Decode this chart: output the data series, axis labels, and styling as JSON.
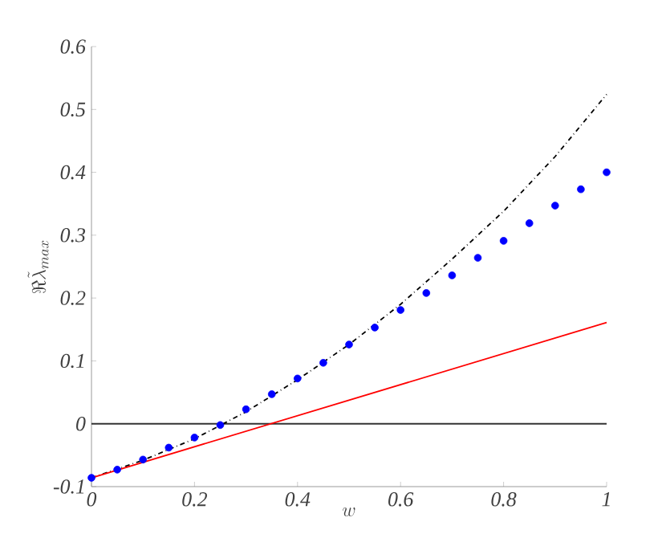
{
  "chart_data": {
    "type": "scatter",
    "xlabel": "w",
    "ylabel": "\\Re\\tilde{\\lambda}_{max}",
    "xlim": [
      0,
      1
    ],
    "ylim": [
      -0.1,
      0.6
    ],
    "xticks": [
      0,
      0.2,
      0.4,
      0.6,
      0.8,
      1
    ],
    "yticks": [
      -0.1,
      0,
      0.1,
      0.2,
      0.3,
      0.4,
      0.5,
      0.6
    ],
    "grid": false,
    "ref_lines": [
      {
        "axis": "y",
        "value": 0,
        "color": "#333333"
      }
    ],
    "series": [
      {
        "color": "#0000ff",
        "marker": "circle",
        "x": [
          0,
          0.05,
          0.1,
          0.15,
          0.2,
          0.25,
          0.3,
          0.35,
          0.4,
          0.45,
          0.5,
          0.55,
          0.6,
          0.65,
          0.7,
          0.75,
          0.8,
          0.85,
          0.9,
          0.95,
          1
        ],
        "values": [
          -0.086,
          -0.073,
          -0.057,
          -0.038,
          -0.022,
          -0.002,
          0.023,
          0.047,
          0.072,
          0.097,
          0.126,
          0.153,
          0.181,
          0.208,
          0.236,
          0.264,
          0.291,
          0.319,
          0.347,
          0.373,
          0.4
        ]
      },
      {
        "type": "line",
        "color": "#000000",
        "line_style": "dashed",
        "marker": "none",
        "x": [
          0,
          0.1,
          0.2,
          0.3,
          0.4,
          0.5,
          0.6,
          0.7,
          0.8,
          0.9,
          1
        ],
        "values": [
          -0.086,
          -0.058,
          -0.024,
          0.019,
          0.07,
          0.126,
          0.19,
          0.262,
          0.338,
          0.425,
          0.524
        ]
      },
      {
        "type": "line",
        "color": "#ff0000",
        "line_style": "solid",
        "marker": "none",
        "x": [
          0,
          1
        ],
        "values": [
          -0.086,
          0.161
        ]
      }
    ]
  }
}
